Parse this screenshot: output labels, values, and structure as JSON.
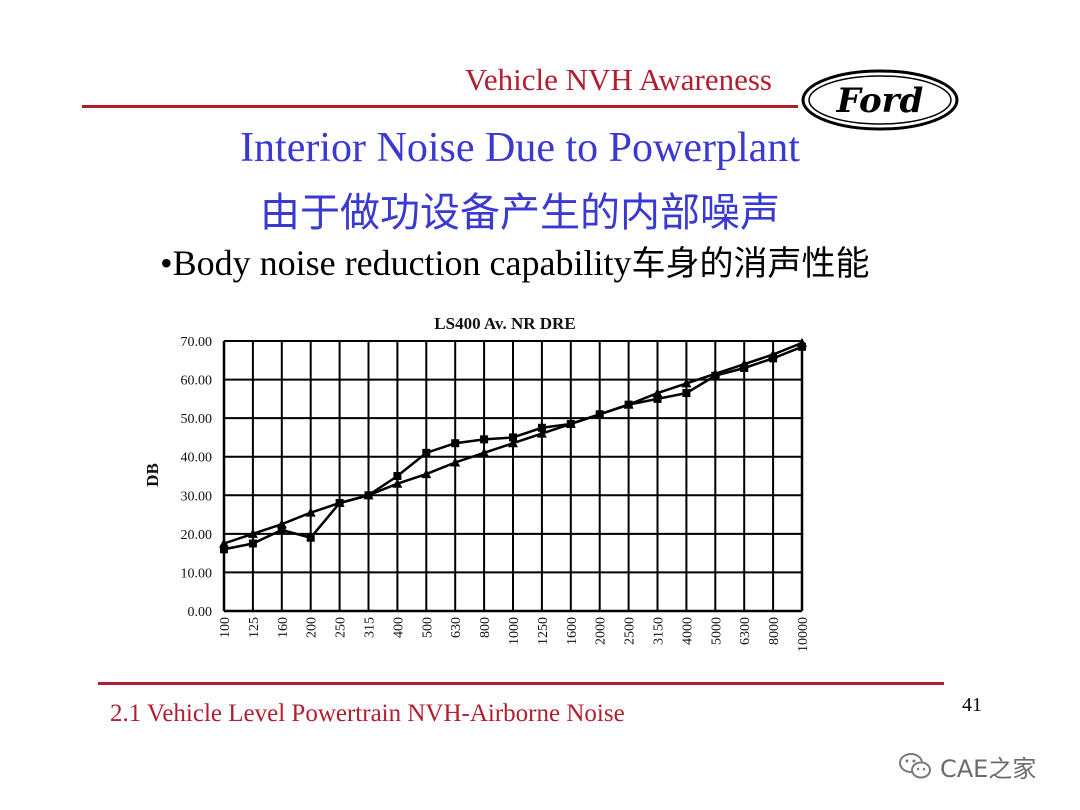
{
  "header": {
    "title": "Vehicle NVH Awareness",
    "logo_text": "Ford"
  },
  "slide": {
    "title": "Interior Noise Due to Powerplant",
    "subtitle_zh": "由于做功设备产生的内部噪声",
    "bullet_en": "•Body noise reduction capability",
    "bullet_zh": "车身的消声性能"
  },
  "footer": {
    "text": "2.1 Vehicle Level Powertrain NVH-Airborne Noise",
    "page_number": "41"
  },
  "watermark": {
    "text": "CAE之家",
    "icon": "wechat-icon"
  },
  "colors": {
    "accent_red": "#b01e2f",
    "title_blue": "#3a3ad0"
  },
  "chart_data": {
    "type": "line",
    "title": "LS400 Av. NR DRE",
    "xlabel": "",
    "ylabel": "DB",
    "ylim": [
      0,
      70
    ],
    "y_ticks": [
      "0.00",
      "10.00",
      "20.00",
      "30.00",
      "40.00",
      "50.00",
      "60.00",
      "70.00"
    ],
    "categories": [
      "100",
      "125",
      "160",
      "200",
      "250",
      "315",
      "400",
      "500",
      "630",
      "800",
      "1000",
      "1250",
      "1600",
      "2000",
      "2500",
      "3150",
      "4000",
      "5000",
      "6300",
      "8000",
      "10000"
    ],
    "grid": true,
    "series": [
      {
        "marker": "square",
        "values": [
          16,
          17.5,
          21,
          19,
          28,
          30,
          35,
          41,
          43.5,
          44.5,
          45,
          47.5,
          48.5,
          51,
          53.5,
          55,
          56.5,
          61,
          63,
          65.5,
          68.5
        ]
      },
      {
        "marker": "triangle",
        "values": [
          17.5,
          20,
          22.5,
          25.5,
          28,
          30,
          33,
          35.5,
          38.5,
          41,
          43.5,
          46,
          48.5,
          51,
          53.5,
          56.5,
          59,
          61.5,
          64,
          66.5,
          69.5
        ]
      }
    ]
  }
}
